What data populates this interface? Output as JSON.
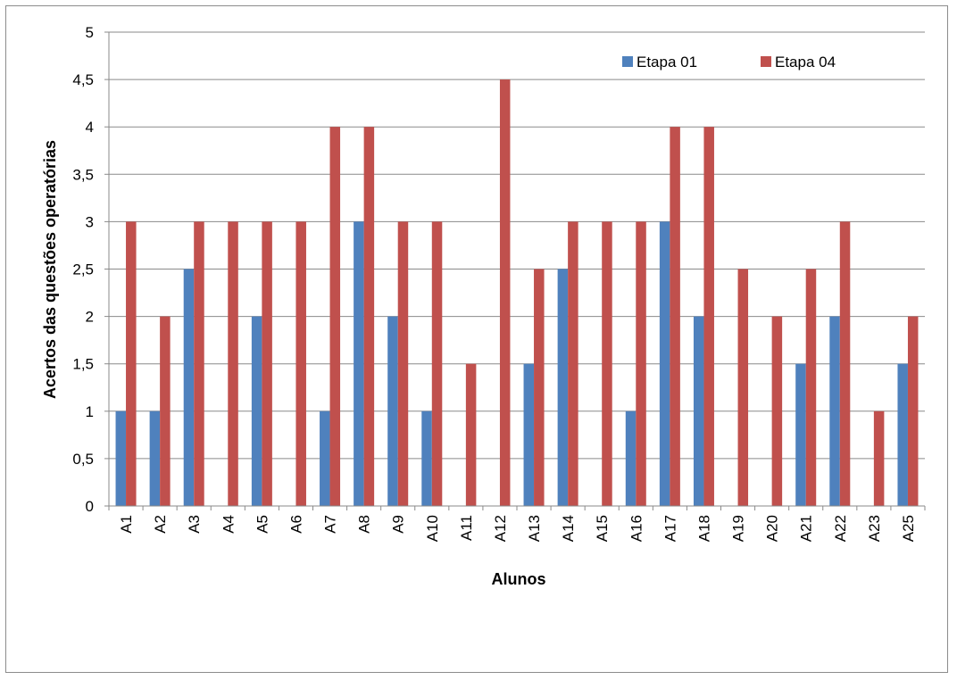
{
  "chart_data": {
    "type": "bar",
    "title": "",
    "xlabel": "Alunos",
    "ylabel": "Acertos das questões operatórias",
    "ylim": [
      0,
      5
    ],
    "yticks": [
      "0",
      "0,5",
      "1",
      "1,5",
      "2",
      "2,5",
      "3",
      "3,5",
      "4",
      "4,5",
      "5"
    ],
    "grid": true,
    "legend_position": "top-right",
    "categories": [
      "A1",
      "A2",
      "A3",
      "A4",
      "A5",
      "A6",
      "A7",
      "A8",
      "A9",
      "A10",
      "A11",
      "A12",
      "A13",
      "A14",
      "A15",
      "A16",
      "A17",
      "A18",
      "A19",
      "A20",
      "A21",
      "A22",
      "A23",
      "A25"
    ],
    "series": [
      {
        "name": "Etapa 01",
        "color": "#4f81bd",
        "values": [
          1,
          1,
          2.5,
          0,
          2,
          0,
          1,
          3,
          2,
          1,
          0,
          0,
          1.5,
          2.5,
          0,
          1,
          3,
          2,
          0,
          0,
          1.5,
          2,
          0,
          1.5
        ]
      },
      {
        "name": "Etapa 04",
        "color": "#c0504d",
        "values": [
          3,
          2,
          3,
          3,
          3,
          3,
          4,
          4,
          3,
          3,
          1.5,
          4.5,
          2.5,
          3,
          3,
          3,
          4,
          4,
          2.5,
          2,
          2.5,
          3,
          1,
          2
        ]
      }
    ]
  }
}
